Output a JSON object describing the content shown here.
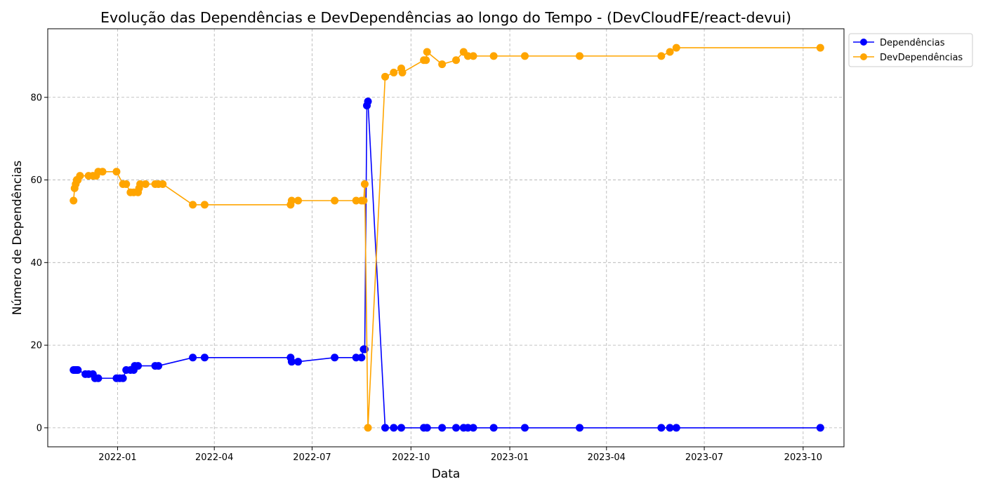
{
  "chart_data": {
    "type": "line",
    "title": "Evolução das Dependências e DevDependências ao longo do Tempo - (DevCloudFE/react-devui)",
    "xlabel": "Data",
    "ylabel": "Número de Dependências",
    "x_range": [
      "2021-10-28",
      "2023-11-08"
    ],
    "ylim": [
      -4.6,
      96.6
    ],
    "x_ticks": [
      {
        "date": "2022-01-01",
        "label": "2022-01"
      },
      {
        "date": "2022-04-01",
        "label": "2022-04"
      },
      {
        "date": "2022-07-01",
        "label": "2022-07"
      },
      {
        "date": "2022-10-01",
        "label": "2022-10"
      },
      {
        "date": "2023-01-01",
        "label": "2023-01"
      },
      {
        "date": "2023-04-01",
        "label": "2023-04"
      },
      {
        "date": "2023-07-01",
        "label": "2023-07"
      },
      {
        "date": "2023-10-01",
        "label": "2023-10"
      }
    ],
    "y_ticks": [
      0,
      20,
      40,
      60,
      80
    ],
    "grid": true,
    "legend_position": "upper-right-outside",
    "series": [
      {
        "name": "Dependências",
        "color": "#0000ff",
        "marker": "circle",
        "points": [
          [
            "2021-11-21",
            14
          ],
          [
            "2021-11-22",
            14
          ],
          [
            "2021-11-23",
            14
          ],
          [
            "2021-11-24",
            14
          ],
          [
            "2021-11-25",
            14
          ],
          [
            "2021-12-02",
            13
          ],
          [
            "2021-12-05",
            13
          ],
          [
            "2021-12-09",
            13
          ],
          [
            "2021-12-11",
            12
          ],
          [
            "2021-12-14",
            12
          ],
          [
            "2021-12-31",
            12
          ],
          [
            "2022-01-03",
            12
          ],
          [
            "2022-01-06",
            12
          ],
          [
            "2022-01-09",
            14
          ],
          [
            "2022-01-13",
            14
          ],
          [
            "2022-01-16",
            14
          ],
          [
            "2022-01-17",
            15
          ],
          [
            "2022-01-20",
            15
          ],
          [
            "2022-02-05",
            15
          ],
          [
            "2022-02-08",
            15
          ],
          [
            "2022-03-12",
            17
          ],
          [
            "2022-03-23",
            17
          ],
          [
            "2022-06-11",
            17
          ],
          [
            "2022-06-12",
            16
          ],
          [
            "2022-06-18",
            16
          ],
          [
            "2022-07-22",
            17
          ],
          [
            "2022-08-11",
            17
          ],
          [
            "2022-08-16",
            17
          ],
          [
            "2022-08-18",
            19
          ],
          [
            "2022-08-19",
            19
          ],
          [
            "2022-08-21",
            78
          ],
          [
            "2022-08-22",
            79
          ],
          [
            "2022-09-07",
            0
          ],
          [
            "2022-09-15",
            0
          ],
          [
            "2022-09-22",
            0
          ],
          [
            "2022-10-13",
            0
          ],
          [
            "2022-10-16",
            0
          ],
          [
            "2022-10-30",
            0
          ],
          [
            "2022-11-12",
            0
          ],
          [
            "2022-11-19",
            0
          ],
          [
            "2022-11-23",
            0
          ],
          [
            "2022-11-28",
            0
          ],
          [
            "2022-12-17",
            0
          ],
          [
            "2023-01-15",
            0
          ],
          [
            "2023-03-07",
            0
          ],
          [
            "2023-05-22",
            0
          ],
          [
            "2023-05-30",
            0
          ],
          [
            "2023-06-05",
            0
          ],
          [
            "2023-10-17",
            0
          ]
        ]
      },
      {
        "name": "DevDependências",
        "color": "#ffa500",
        "marker": "circle",
        "points": [
          [
            "2021-11-21",
            55
          ],
          [
            "2021-11-22",
            58
          ],
          [
            "2021-11-23",
            59
          ],
          [
            "2021-11-24",
            60
          ],
          [
            "2021-11-25",
            60
          ],
          [
            "2021-11-27",
            61
          ],
          [
            "2021-12-05",
            61
          ],
          [
            "2021-12-09",
            61
          ],
          [
            "2021-12-12",
            61
          ],
          [
            "2021-12-14",
            62
          ],
          [
            "2021-12-18",
            62
          ],
          [
            "2021-12-31",
            62
          ],
          [
            "2022-01-06",
            59
          ],
          [
            "2022-01-09",
            59
          ],
          [
            "2022-01-13",
            57
          ],
          [
            "2022-01-16",
            57
          ],
          [
            "2022-01-20",
            57
          ],
          [
            "2022-01-21",
            58
          ],
          [
            "2022-01-22",
            59
          ],
          [
            "2022-01-27",
            59
          ],
          [
            "2022-02-05",
            59
          ],
          [
            "2022-02-08",
            59
          ],
          [
            "2022-02-12",
            59
          ],
          [
            "2022-03-12",
            54
          ],
          [
            "2022-03-23",
            54
          ],
          [
            "2022-06-11",
            54
          ],
          [
            "2022-06-12",
            55
          ],
          [
            "2022-06-18",
            55
          ],
          [
            "2022-07-22",
            55
          ],
          [
            "2022-08-11",
            55
          ],
          [
            "2022-08-16",
            55
          ],
          [
            "2022-08-18",
            55
          ],
          [
            "2022-08-19",
            59
          ],
          [
            "2022-08-22",
            0
          ],
          [
            "2022-09-07",
            85
          ],
          [
            "2022-09-15",
            86
          ],
          [
            "2022-09-22",
            87
          ],
          [
            "2022-09-23",
            86
          ],
          [
            "2022-10-13",
            89
          ],
          [
            "2022-10-15",
            89
          ],
          [
            "2022-10-16",
            91
          ],
          [
            "2022-10-30",
            88
          ],
          [
            "2022-11-12",
            89
          ],
          [
            "2022-11-19",
            91
          ],
          [
            "2022-11-23",
            90
          ],
          [
            "2022-11-28",
            90
          ],
          [
            "2022-12-17",
            90
          ],
          [
            "2023-01-15",
            90
          ],
          [
            "2023-03-07",
            90
          ],
          [
            "2023-05-22",
            90
          ],
          [
            "2023-05-30",
            91
          ],
          [
            "2023-06-05",
            92
          ],
          [
            "2023-10-17",
            92
          ]
        ]
      }
    ]
  }
}
